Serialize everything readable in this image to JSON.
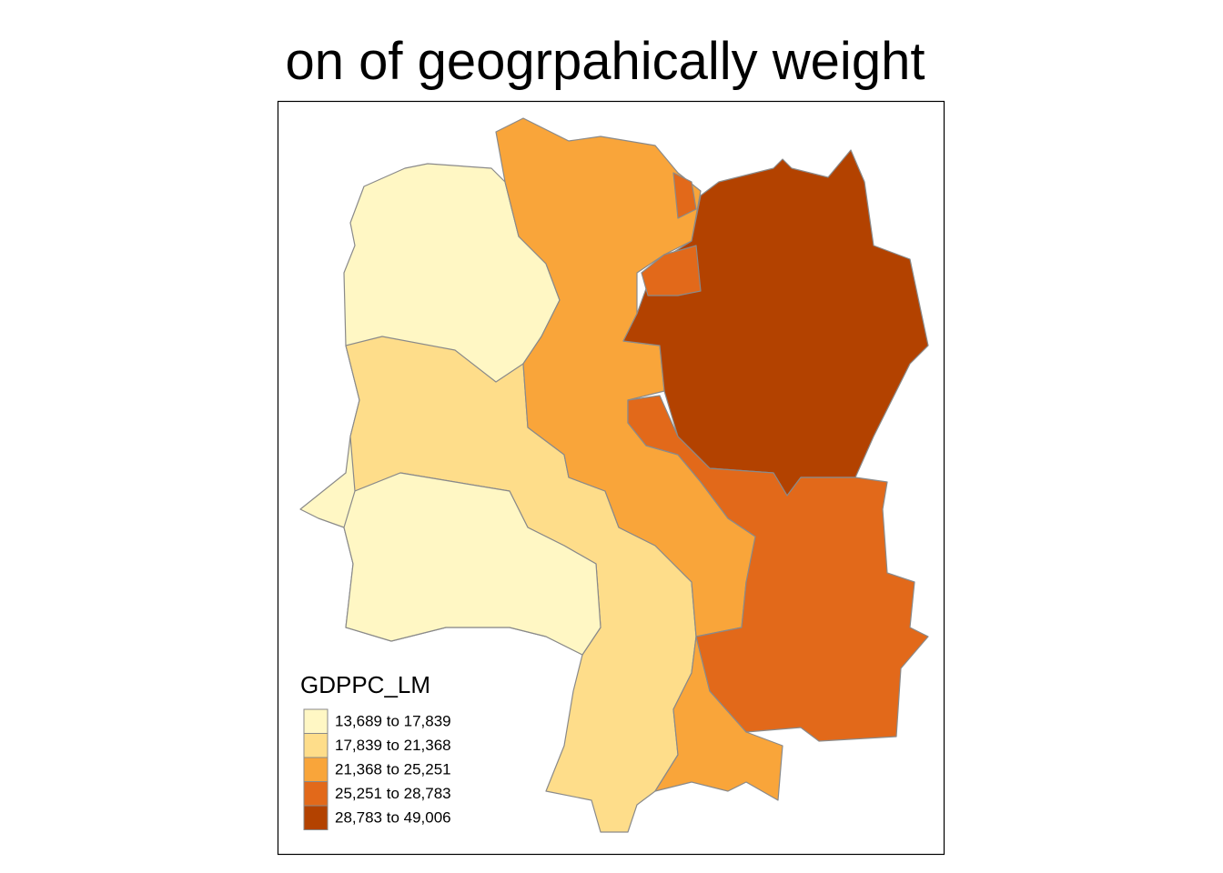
{
  "title": "on of geogrpahically weight",
  "legend": {
    "title": "GDPPC_LM",
    "classes": [
      {
        "label": "13,689 to 17,839",
        "color": "#fff7c4"
      },
      {
        "label": "17,839 to 21,368",
        "color": "#fedd8a"
      },
      {
        "label": "21,368 to 25,251",
        "color": "#f9a53a"
      },
      {
        "label": "25,251 to 28,783",
        "color": "#e2691a"
      },
      {
        "label": "28,783 to 49,006",
        "color": "#b34200"
      }
    ]
  }
}
